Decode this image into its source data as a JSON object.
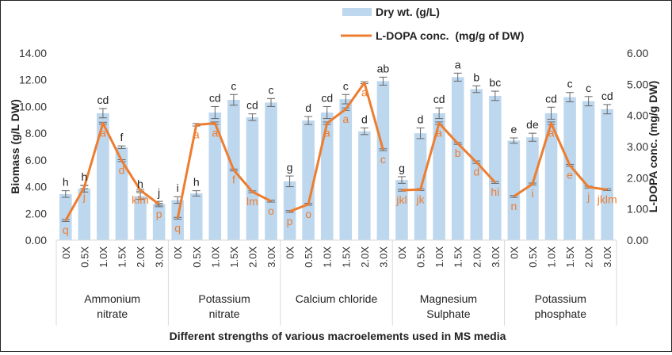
{
  "chart_data": {
    "type": "bar+line",
    "title": "",
    "xlabel": "Different strengths of various macroelements used in MS media",
    "ylabel_left": "Biomass (g/L DW)",
    "ylabel_right": "L-DOPA conc. (mg/g DW)",
    "ylim_left": [
      0,
      14
    ],
    "ylim_right": [
      0,
      6
    ],
    "yticks_left": [
      "0.00",
      "2.00",
      "4.00",
      "6.00",
      "8.00",
      "10.00",
      "12.00",
      "14.00"
    ],
    "yticks_right": [
      "0.00",
      "1.00",
      "2.00",
      "3.00",
      "4.00",
      "5.00",
      "6.00"
    ],
    "grid": false,
    "legend_position": "top-center",
    "legend": [
      {
        "name": "Dry wt. (g/L)",
        "type": "bar",
        "color": "#BDD7EE"
      },
      {
        "name": "L-DOPA conc.  (mg/g of DW)",
        "type": "line",
        "color": "#ED7D31"
      }
    ],
    "strengths": [
      "0X",
      "0.5X",
      "1.0X",
      "1.5X",
      "2.0X",
      "3.0X"
    ],
    "groups": [
      {
        "name_lines": [
          "Ammonium",
          "nitrate"
        ],
        "dry_wt": [
          3.45,
          3.85,
          9.5,
          6.95,
          3.3,
          2.7
        ],
        "dry_wt_err": [
          0.25,
          0.25,
          0.35,
          0.1,
          0.25,
          0.2
        ],
        "dry_wt_letters": [
          "h",
          "h",
          "cd",
          "f",
          "h",
          "j"
        ],
        "ldopa": [
          0.63,
          1.7,
          3.75,
          2.55,
          1.6,
          1.15
        ],
        "ldopa_err": [
          0.03,
          0.05,
          0.03,
          0.03,
          0.03,
          0.03
        ],
        "ldopa_letters": [
          "q",
          "j",
          "a",
          "d",
          "klm",
          "p"
        ]
      },
      {
        "name_lines": [
          "Potassium",
          "nitrate"
        ],
        "dry_wt": [
          3.0,
          3.5,
          9.55,
          10.5,
          9.2,
          10.3
        ],
        "dry_wt_err": [
          0.25,
          0.2,
          0.45,
          0.4,
          0.25,
          0.3
        ],
        "dry_wt_letters": [
          "i",
          "h",
          "cd",
          "c",
          "cd",
          "c"
        ],
        "ldopa": [
          0.7,
          3.7,
          3.75,
          2.25,
          1.55,
          1.25
        ],
        "ldopa_err": [
          0.03,
          0.04,
          0.04,
          0.03,
          0.03,
          0.03
        ],
        "ldopa_letters": [
          "q",
          "a",
          "a",
          "f",
          "lm",
          "o"
        ]
      },
      {
        "name_lines": [
          "Calcium chloride"
        ],
        "dry_wt": [
          4.4,
          8.95,
          9.55,
          10.55,
          8.15,
          11.9
        ],
        "dry_wt_err": [
          0.4,
          0.3,
          0.45,
          0.35,
          0.25,
          0.3
        ],
        "dry_wt_letters": [
          "g",
          "d",
          "cd",
          "c",
          "d",
          "ab"
        ],
        "ldopa": [
          0.92,
          1.15,
          3.75,
          4.2,
          5.05,
          2.9
        ],
        "ldopa_err": [
          0.03,
          0.03,
          0.04,
          0.04,
          0.03,
          0.03
        ],
        "ldopa_letters": [
          "p",
          "o",
          "a",
          "a",
          "a",
          "c"
        ]
      },
      {
        "name_lines": [
          "Magnesium",
          "Sulphate"
        ],
        "dry_wt": [
          4.5,
          8.0,
          9.5,
          12.2,
          11.3,
          10.8
        ],
        "dry_wt_err": [
          0.25,
          0.4,
          0.4,
          0.3,
          0.25,
          0.35
        ],
        "dry_wt_letters": [
          "g",
          "d",
          "cd",
          "a",
          "b",
          "bc"
        ],
        "ldopa": [
          1.6,
          1.62,
          3.75,
          3.1,
          2.5,
          1.85
        ],
        "ldopa_err": [
          0.03,
          0.03,
          0.04,
          0.03,
          0.04,
          0.03
        ],
        "ldopa_letters": [
          "jkl",
          "jk",
          "a",
          "b",
          "d",
          "hi"
        ]
      },
      {
        "name_lines": [
          "Potassium",
          "phosphate"
        ],
        "dry_wt": [
          7.45,
          7.7,
          9.5,
          10.7,
          10.4,
          9.8
        ],
        "dry_wt_err": [
          0.2,
          0.3,
          0.45,
          0.35,
          0.35,
          0.35
        ],
        "dry_wt_letters": [
          "e",
          "de",
          "cd",
          "c",
          "c",
          "cd"
        ],
        "ldopa": [
          1.4,
          1.8,
          3.75,
          2.4,
          1.7,
          1.62
        ],
        "ldopa_err": [
          0.03,
          0.03,
          0.04,
          0.03,
          0.03,
          0.03
        ],
        "ldopa_letters": [
          "n",
          "i",
          "a",
          "e",
          "j",
          "jklm"
        ]
      }
    ]
  }
}
